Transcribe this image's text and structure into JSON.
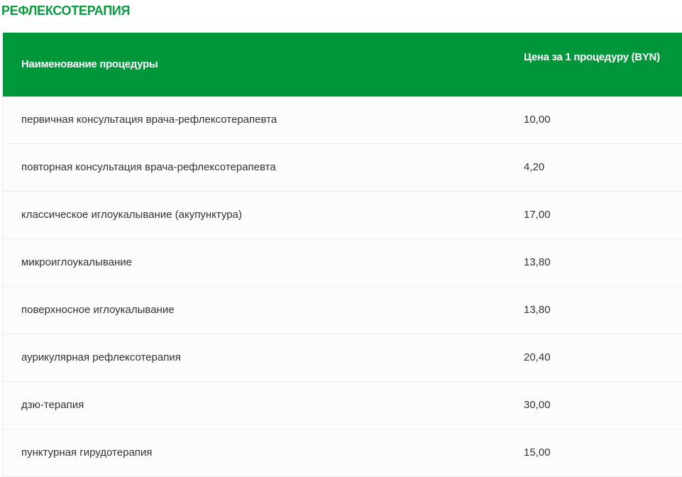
{
  "title": "РЕФЛЕКСОТЕРАПИЯ",
  "colors": {
    "accent": "#00963a",
    "title": "#0a9a3f"
  },
  "table": {
    "headers": [
      "Наименование процедуры",
      "Цена за 1 процедуру (BYN)"
    ],
    "rows": [
      {
        "name": "первичная консультация врача-рефлексотерапевта",
        "price": "10,00"
      },
      {
        "name": "повторная консультация врача-рефлексотерапевта",
        "price": "4,20"
      },
      {
        "name": "классическое иглоукалывание (акупунктура)",
        "price": "17,00"
      },
      {
        "name": "микроиглоукалывание",
        "price": "13,80"
      },
      {
        "name": "поверхносное иглоукалывание",
        "price": "13,80"
      },
      {
        "name": "аурикулярная рефлексотерапия",
        "price": "20,40"
      },
      {
        "name": "дзю-терапия",
        "price": "30,00"
      },
      {
        "name": "пунктурная гирудотерапия",
        "price": "15,00"
      }
    ]
  }
}
